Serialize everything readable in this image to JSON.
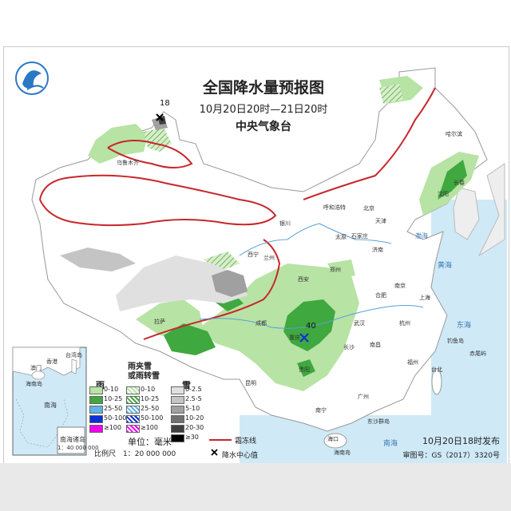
{
  "map": {
    "title": "全国降水量预报图",
    "period": "10月20日20时—21日20时",
    "agency": "中央气象台",
    "issued": "10月20日18时发布",
    "approval": "审图号：GS（2017）3320号",
    "unit": "单位：毫米",
    "scale": "比例尺　1：20 000 000",
    "line_legend": "霜冻线",
    "center_legend": "降水中心值",
    "max_values": [
      "18",
      "40"
    ]
  },
  "legend": {
    "rain_head": "雨",
    "mixed_head": "雨夹雪\n或雨转雪",
    "snow_head": "雪",
    "rain": [
      {
        "label": "0-10",
        "color": "#b7e3a4"
      },
      {
        "label": "10-25",
        "color": "#3fa83f"
      },
      {
        "label": "25-50",
        "color": "#5fb3e8"
      },
      {
        "label": "50-100",
        "color": "#0b2fd8"
      },
      {
        "label": "≥100",
        "color": "#f000f0"
      }
    ],
    "mixed": [
      {
        "label": "0-10",
        "color": "#b7e3a4"
      },
      {
        "label": "10-25",
        "color": "#3fa83f"
      },
      {
        "label": "25-50",
        "color": "#5fb3e8"
      },
      {
        "label": "50-100",
        "color": "#0b2fd8"
      },
      {
        "label": "≥100",
        "color": "#f000f0"
      }
    ],
    "snow": [
      {
        "label": "0-2.5",
        "color": "#e0e0e0"
      },
      {
        "label": "2.5-5",
        "color": "#c4c4c4"
      },
      {
        "label": "5-10",
        "color": "#a0a0a0"
      },
      {
        "label": "10-20",
        "color": "#707070"
      },
      {
        "label": "20-30",
        "color": "#404040"
      },
      {
        "label": "≥30",
        "color": "#000000"
      }
    ]
  },
  "inset": {
    "sea": "南海",
    "islands_label": "南海诸岛",
    "scale": "1：40 000 000",
    "places": [
      "香港",
      "台湾岛",
      "澳门",
      "海南岛"
    ]
  },
  "cities": [
    "哈尔滨",
    "长春",
    "沈阳",
    "呼和浩特",
    "北京",
    "天津",
    "石家庄",
    "太原",
    "济南",
    "银川",
    "兰州",
    "西宁",
    "西安",
    "郑州",
    "合肥",
    "南京",
    "上海",
    "武汉",
    "杭州",
    "长沙",
    "南昌",
    "福州",
    "台北",
    "成都",
    "重庆",
    "贵阳",
    "昆明",
    "南宁",
    "广州",
    "拉萨",
    "乌鲁木齐",
    "钓鱼岛",
    "赤尾屿",
    "东沙群岛",
    "海南岛",
    "海口"
  ],
  "seas": [
    "渤海",
    "黄海",
    "东海",
    "南海"
  ]
}
